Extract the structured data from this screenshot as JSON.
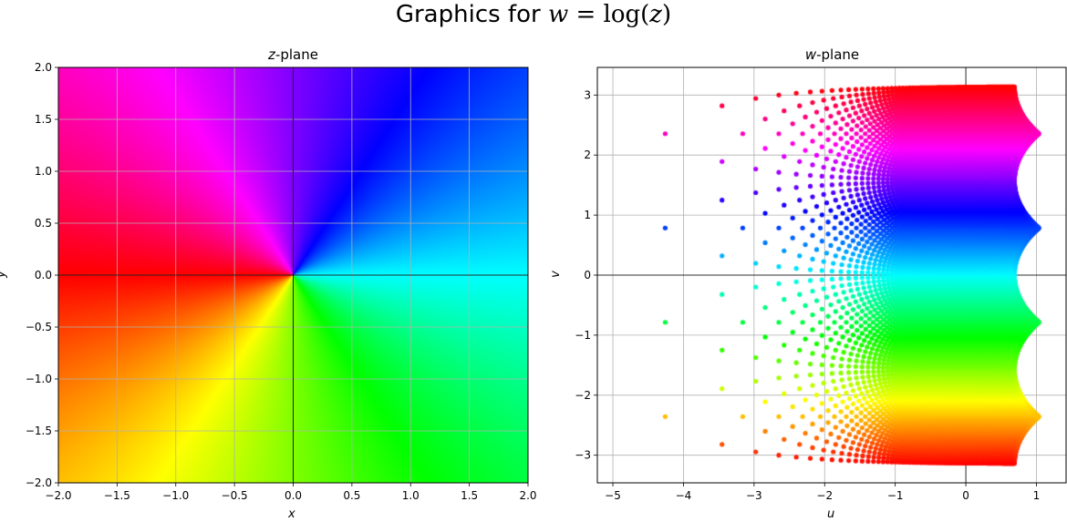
{
  "suptitle": {
    "prefix": "Graphics for ",
    "formula_lhs": "w",
    "formula_eq": " = log(",
    "formula_var": "z",
    "formula_close": ")"
  },
  "chart_data": [
    {
      "type": "heatmap",
      "title_var": "z",
      "title_suffix": "-plane",
      "xlabel": "x",
      "ylabel": "y",
      "xlim": [
        -2.0,
        2.0
      ],
      "ylim": [
        -2.0,
        2.0
      ],
      "xticks": [
        -2.0,
        -1.5,
        -1.0,
        -0.5,
        0.0,
        0.5,
        1.0,
        1.5,
        2.0
      ],
      "yticks": [
        -2.0,
        -1.5,
        -1.0,
        -0.5,
        0.0,
        0.5,
        1.0,
        1.5,
        2.0
      ],
      "xtick_labels": [
        "−2.0",
        "−1.5",
        "−1.0",
        "−0.5",
        "0.0",
        "0.5",
        "1.0",
        "1.5",
        "2.0"
      ],
      "ytick_labels": [
        "−2.0",
        "−1.5",
        "−1.0",
        "−0.5",
        "0.0",
        "0.5",
        "1.0",
        "1.5",
        "2.0"
      ],
      "grid": true,
      "color_encoding": "hue of arg(z)"
    },
    {
      "type": "scatter",
      "title_var": "w",
      "title_suffix": "-plane",
      "xlabel": "u",
      "ylabel": "v",
      "xlim": [
        -5.22,
        1.42
      ],
      "ylim": [
        -3.46,
        3.46
      ],
      "xticks": [
        -5,
        -4,
        -3,
        -2,
        -1,
        0,
        1
      ],
      "yticks": [
        -3,
        -2,
        -1,
        0,
        1,
        2,
        3
      ],
      "xtick_labels": [
        "−5",
        "−4",
        "−3",
        "−2",
        "−1",
        "0",
        "1"
      ],
      "ytick_labels": [
        "−3",
        "−2",
        "−1",
        "0",
        "1",
        "2",
        "3"
      ],
      "grid": true,
      "points": "w = log(z) for z on a grid over [-2, 2] × [-2, 2]",
      "color_encoding": "hue of v = arg(z)"
    }
  ]
}
